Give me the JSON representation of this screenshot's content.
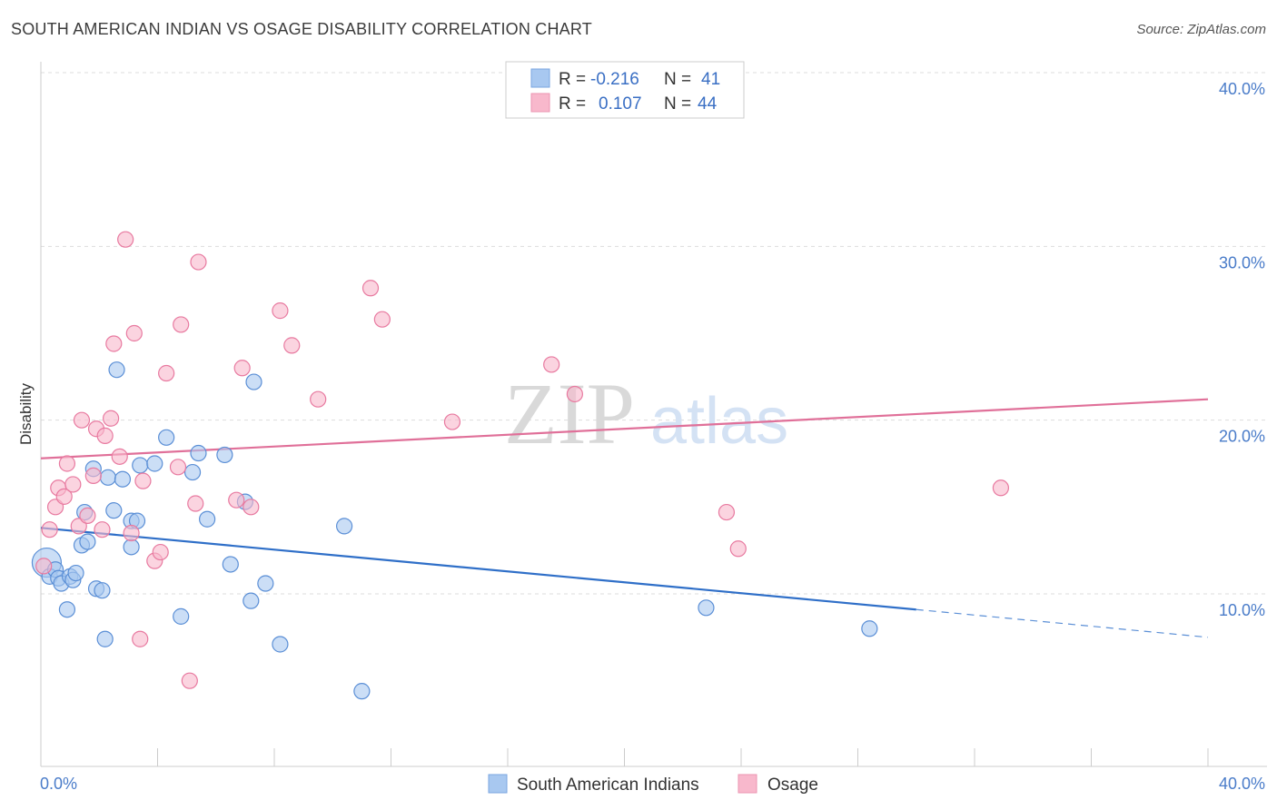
{
  "header": {
    "title": "SOUTH AMERICAN INDIAN VS OSAGE DISABILITY CORRELATION CHART",
    "source": "Source: ZipAtlas.com"
  },
  "watermark": {
    "zip": "ZIP",
    "atlas": "atlas"
  },
  "legend": {
    "rows": [
      {
        "r_label": "R =",
        "r_value": "-0.216",
        "n_label": "N =",
        "n_value": "41",
        "color": "#a8c8f0"
      },
      {
        "r_label": "R =",
        "r_value": "0.107",
        "n_label": "N =",
        "n_value": "44",
        "color": "#f8b8cc"
      }
    ]
  },
  "bottom_legend": {
    "items": [
      {
        "label": "South American Indians",
        "color": "#a8c8f0"
      },
      {
        "label": "Osage",
        "color": "#f8b8cc"
      }
    ]
  },
  "chart_data": {
    "type": "scatter",
    "xlabel": "",
    "ylabel": "Disability",
    "xlim": [
      0,
      40
    ],
    "ylim": [
      0,
      41
    ],
    "x_ticks": [
      "0.0%",
      "40.0%"
    ],
    "y_ticks": [
      {
        "value": 10,
        "label": "10.0%"
      },
      {
        "value": 20,
        "label": "20.0%"
      },
      {
        "value": 30,
        "label": "30.0%"
      },
      {
        "value": 40,
        "label": "40.0%"
      }
    ],
    "grid": true,
    "series": [
      {
        "name": "South American Indians",
        "color": "#5b8fd6",
        "fill": "#a8c8f0",
        "points": [
          [
            0.2,
            11.8
          ],
          [
            0.3,
            11.0
          ],
          [
            0.5,
            11.4
          ],
          [
            0.6,
            10.9
          ],
          [
            0.7,
            10.6
          ],
          [
            0.9,
            9.1
          ],
          [
            1.0,
            11.0
          ],
          [
            1.1,
            10.8
          ],
          [
            1.2,
            11.2
          ],
          [
            1.4,
            12.8
          ],
          [
            1.5,
            14.7
          ],
          [
            1.6,
            13.0
          ],
          [
            1.8,
            17.2
          ],
          [
            1.9,
            10.3
          ],
          [
            2.1,
            10.2
          ],
          [
            2.2,
            7.4
          ],
          [
            2.3,
            16.7
          ],
          [
            2.5,
            14.8
          ],
          [
            2.6,
            22.9
          ],
          [
            2.8,
            16.6
          ],
          [
            3.1,
            14.2
          ],
          [
            3.1,
            12.7
          ],
          [
            3.3,
            14.2
          ],
          [
            3.4,
            17.4
          ],
          [
            3.9,
            17.5
          ],
          [
            4.3,
            19.0
          ],
          [
            4.8,
            8.7
          ],
          [
            5.2,
            17.0
          ],
          [
            5.4,
            18.1
          ],
          [
            5.7,
            14.3
          ],
          [
            6.3,
            18.0
          ],
          [
            6.5,
            11.7
          ],
          [
            7.0,
            15.3
          ],
          [
            7.2,
            9.6
          ],
          [
            7.3,
            22.2
          ],
          [
            7.7,
            10.6
          ],
          [
            8.2,
            7.1
          ],
          [
            10.4,
            13.9
          ],
          [
            11.0,
            4.4
          ],
          [
            22.8,
            9.2
          ],
          [
            28.4,
            8.0
          ]
        ]
      },
      {
        "name": "Osage",
        "color": "#e87aa0",
        "fill": "#f8b8cc",
        "points": [
          [
            0.1,
            11.6
          ],
          [
            0.3,
            13.7
          ],
          [
            0.5,
            15.0
          ],
          [
            0.6,
            16.1
          ],
          [
            0.8,
            15.6
          ],
          [
            0.9,
            17.5
          ],
          [
            1.1,
            16.3
          ],
          [
            1.3,
            13.9
          ],
          [
            1.4,
            20.0
          ],
          [
            1.6,
            14.5
          ],
          [
            1.8,
            16.8
          ],
          [
            1.9,
            19.5
          ],
          [
            2.1,
            13.7
          ],
          [
            2.2,
            19.1
          ],
          [
            2.4,
            20.1
          ],
          [
            2.5,
            24.4
          ],
          [
            2.7,
            17.9
          ],
          [
            2.9,
            30.4
          ],
          [
            3.1,
            13.5
          ],
          [
            3.2,
            25.0
          ],
          [
            3.4,
            7.4
          ],
          [
            3.5,
            16.5
          ],
          [
            3.9,
            11.9
          ],
          [
            4.1,
            12.4
          ],
          [
            4.3,
            22.7
          ],
          [
            4.7,
            17.3
          ],
          [
            4.8,
            25.5
          ],
          [
            5.1,
            5.0
          ],
          [
            5.3,
            15.2
          ],
          [
            5.4,
            29.1
          ],
          [
            6.7,
            15.4
          ],
          [
            6.9,
            23.0
          ],
          [
            7.2,
            15.0
          ],
          [
            8.2,
            26.3
          ],
          [
            8.6,
            24.3
          ],
          [
            9.5,
            21.2
          ],
          [
            11.3,
            27.6
          ],
          [
            11.7,
            25.8
          ],
          [
            14.1,
            19.9
          ],
          [
            17.5,
            23.2
          ],
          [
            18.3,
            21.5
          ],
          [
            23.5,
            14.7
          ],
          [
            23.9,
            12.6
          ],
          [
            32.9,
            16.1
          ]
        ]
      }
    ],
    "trend_lines": [
      {
        "series": "South American Indians",
        "x_solid": [
          0,
          30
        ],
        "y_solid": [
          13.8,
          9.1
        ],
        "x_dashed": [
          30,
          40
        ],
        "y_dashed": [
          9.1,
          7.5
        ]
      },
      {
        "series": "Osage",
        "x_solid": [
          0,
          40
        ],
        "y_solid": [
          17.8,
          21.2
        ]
      }
    ]
  }
}
